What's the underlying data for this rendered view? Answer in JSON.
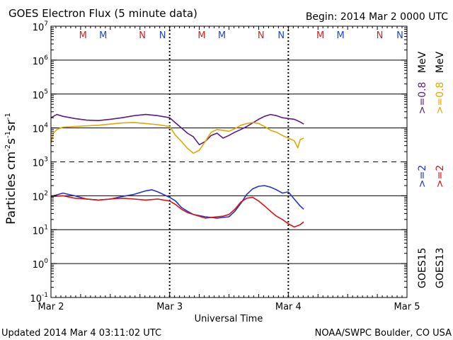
{
  "chart_data": {
    "type": "line",
    "title": "GOES Electron Flux (5 minute data)",
    "begin_label": "Begin: 2014 Mar 2 0000 UTC",
    "xlabel": "Universal Time",
    "ylabel_main": "Particles cm",
    "ylabel_exp1": "-2",
    "ylabel_mid1": "s",
    "ylabel_exp2": "-1",
    "ylabel_mid2": "sr",
    "ylabel_exp3": "-1",
    "updated": "Updated 2014 Mar  4 03:11:02 UTC",
    "credit": "NOAA/SWPC Boulder, CO USA",
    "x_unit": "days since 2014 Mar 2 00:00 UTC",
    "xlim": [
      0,
      3
    ],
    "x_ticks": [
      {
        "value": 0,
        "label": "Mar 2"
      },
      {
        "value": 1,
        "label": "Mar 3"
      },
      {
        "value": 2,
        "label": "Mar 4"
      },
      {
        "value": 3,
        "label": "Mar 5"
      }
    ],
    "y_scale": "log",
    "ylim_exp": [
      -1,
      7
    ],
    "y_ticks": [
      {
        "exp": 7,
        "mantissa": "10",
        "power": "7"
      },
      {
        "exp": 6,
        "mantissa": "10",
        "power": "6"
      },
      {
        "exp": 5,
        "mantissa": "10",
        "power": "5"
      },
      {
        "exp": 4,
        "mantissa": "10",
        "power": "4"
      },
      {
        "exp": 3,
        "mantissa": "10",
        "power": "3"
      },
      {
        "exp": 2,
        "mantissa": "10",
        "power": "2"
      },
      {
        "exp": 1,
        "mantissa": "10",
        "power": "1"
      },
      {
        "exp": 0,
        "mantissa": "10",
        "power": "0"
      },
      {
        "exp": -1,
        "mantissa": "10",
        "power": "-1"
      }
    ],
    "solid_gridlines_exp": [
      6,
      5,
      4,
      2,
      1,
      0
    ],
    "dashed_gridlines_exp": [
      3
    ],
    "day_markers": [
      1,
      2
    ],
    "markers": [
      {
        "label": "M",
        "x": 0.27,
        "color": "#cc2222"
      },
      {
        "label": "M",
        "x": 0.44,
        "color": "#2244cc"
      },
      {
        "label": "N",
        "x": 0.77,
        "color": "#cc2222"
      },
      {
        "label": "N",
        "x": 0.94,
        "color": "#2244cc"
      },
      {
        "label": "M",
        "x": 1.27,
        "color": "#cc2222"
      },
      {
        "label": "M",
        "x": 1.44,
        "color": "#2244cc"
      },
      {
        "label": "N",
        "x": 1.77,
        "color": "#cc2222"
      },
      {
        "label": "N",
        "x": 1.94,
        "color": "#2244cc"
      },
      {
        "label": "M",
        "x": 2.27,
        "color": "#cc2222"
      },
      {
        "label": "M",
        "x": 2.44,
        "color": "#2244cc"
      },
      {
        "label": "N",
        "x": 2.77,
        "color": "#cc2222"
      },
      {
        "label": "N",
        "x": 2.94,
        "color": "#2244cc"
      }
    ],
    "legend": {
      "col_goes15": {
        "sat": "GOES15",
        "entries": [
          {
            "text": ">=2",
            "color": "#2233cc"
          },
          {
            "text": ">=0.8",
            "color": "#5c1a8a"
          }
        ],
        "unit": "MeV"
      },
      "col_goes13": {
        "sat": "GOES13",
        "entries": [
          {
            "text": ">=2",
            "color": "#dd1111"
          },
          {
            "text": ">=0.8",
            "color": "#e0a800"
          }
        ],
        "unit": "MeV"
      }
    },
    "series": [
      {
        "name": "GOES15 >=0.8 MeV",
        "color": "#5c1a8a",
        "x": [
          0.0,
          0.05,
          0.1,
          0.2,
          0.3,
          0.4,
          0.5,
          0.6,
          0.7,
          0.8,
          0.9,
          1.0,
          1.05,
          1.1,
          1.15,
          1.2,
          1.25,
          1.3,
          1.35,
          1.4,
          1.45,
          1.5,
          1.55,
          1.6,
          1.65,
          1.7,
          1.75,
          1.8,
          1.85,
          1.9,
          1.95,
          2.0,
          2.05,
          2.1,
          2.13
        ],
        "y": [
          20000,
          25000,
          22000,
          19000,
          17000,
          16500,
          18000,
          20000,
          23000,
          25000,
          23000,
          20000,
          14000,
          10000,
          7000,
          5500,
          3200,
          4000,
          6000,
          7000,
          5000,
          6000,
          7500,
          9000,
          11000,
          14000,
          18000,
          22000,
          25000,
          23000,
          20000,
          19000,
          18000,
          15000,
          13000
        ]
      },
      {
        "name": "GOES13 >=0.8 MeV",
        "color": "#e0a800",
        "x": [
          0.0,
          0.02,
          0.05,
          0.1,
          0.2,
          0.3,
          0.4,
          0.5,
          0.6,
          0.7,
          0.8,
          0.9,
          1.0,
          1.05,
          1.1,
          1.15,
          1.2,
          1.25,
          1.3,
          1.35,
          1.4,
          1.5,
          1.55,
          1.6,
          1.65,
          1.7,
          1.75,
          1.8,
          1.85,
          1.9,
          1.95,
          2.0,
          2.05,
          2.08,
          2.1,
          2.13
        ],
        "y": [
          3500,
          7000,
          9000,
          10500,
          11000,
          11500,
          12000,
          13000,
          14000,
          14500,
          13500,
          12500,
          11000,
          6000,
          4000,
          2500,
          1800,
          2200,
          4000,
          7500,
          9000,
          8000,
          9500,
          12000,
          13500,
          14500,
          13500,
          11000,
          8500,
          7500,
          6000,
          5000,
          4200,
          2600,
          4500,
          5000
        ]
      },
      {
        "name": "GOES15 >=2 MeV",
        "color": "#2233cc",
        "x": [
          0.0,
          0.1,
          0.2,
          0.3,
          0.4,
          0.5,
          0.6,
          0.7,
          0.8,
          0.85,
          0.9,
          1.0,
          1.05,
          1.1,
          1.15,
          1.2,
          1.25,
          1.3,
          1.4,
          1.5,
          1.55,
          1.6,
          1.65,
          1.7,
          1.75,
          1.8,
          1.85,
          1.9,
          1.95,
          2.0,
          2.05,
          2.1,
          2.13
        ],
        "y": [
          95,
          120,
          100,
          80,
          75,
          80,
          95,
          110,
          140,
          150,
          130,
          90,
          70,
          45,
          35,
          28,
          26,
          24,
          22,
          24,
          35,
          60,
          110,
          160,
          190,
          200,
          180,
          150,
          120,
          130,
          80,
          50,
          40
        ]
      },
      {
        "name": "GOES13 >=2 MeV",
        "color": "#dd1111",
        "x": [
          0.0,
          0.1,
          0.2,
          0.3,
          0.4,
          0.5,
          0.6,
          0.7,
          0.8,
          0.9,
          1.0,
          1.05,
          1.1,
          1.15,
          1.2,
          1.3,
          1.4,
          1.45,
          1.5,
          1.55,
          1.6,
          1.65,
          1.7,
          1.75,
          1.8,
          1.85,
          1.9,
          1.95,
          2.0,
          2.05,
          2.1,
          2.13
        ],
        "y": [
          95,
          100,
          85,
          80,
          75,
          80,
          85,
          80,
          75,
          80,
          70,
          55,
          40,
          32,
          28,
          22,
          24,
          25,
          28,
          40,
          65,
          85,
          90,
          70,
          50,
          35,
          25,
          20,
          15,
          12,
          14,
          17
        ]
      }
    ]
  }
}
